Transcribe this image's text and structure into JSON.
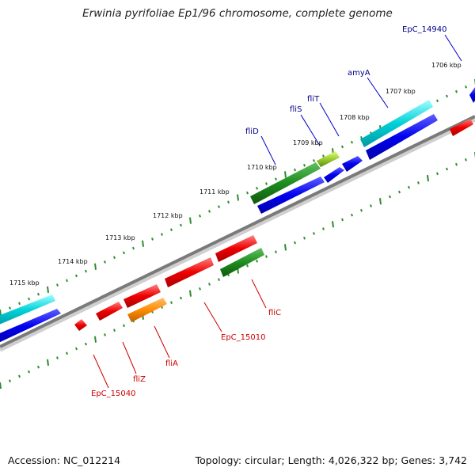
{
  "title": "Erwinia pyrifoliae Ep1/96 chromosome, complete genome",
  "footer": {
    "accession": "Accession: NC_012214",
    "summary": "Topology: circular; Length: 4,026,322 bp; Genes: 3,742"
  },
  "ticks": [
    "1706 kbp",
    "1707 kbp",
    "1708 kbp",
    "1709 kbp",
    "1710 kbp",
    "1711 kbp",
    "1712 kbp",
    "1713 kbp",
    "1714 kbp",
    "1715 kbp"
  ],
  "labels": {
    "top": [
      "EpC_14940",
      "amyA",
      "fliT",
      "fliS",
      "fliD"
    ],
    "bottom": [
      "fliC",
      "EpC_15010",
      "fliA",
      "fliZ",
      "EpC_15040"
    ]
  },
  "colors": {
    "forward_cds": "#0000ee",
    "reverse_cds": "#ee0000",
    "blue_gene": "#00c8d2",
    "green_gene": "#1e8c1e",
    "orange_gene": "#ff8c00",
    "lime_gene": "#9acd32",
    "backbone": "#808080",
    "ticks": "#2e8b2e",
    "top_label": "#00008b",
    "bottom_label": "#cc0000"
  }
}
